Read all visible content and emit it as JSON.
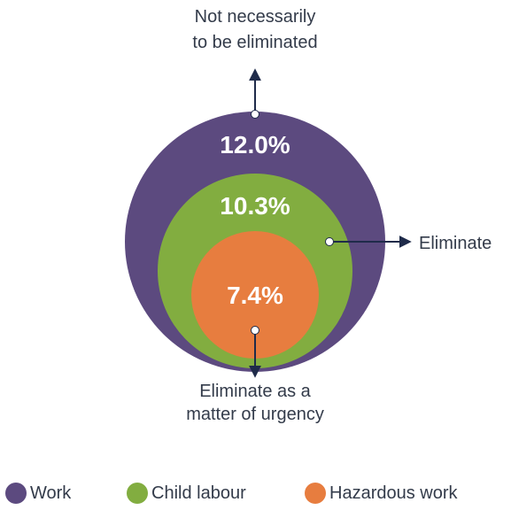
{
  "diagram": {
    "top_note": [
      "Not necessarily",
      "to be eliminated"
    ],
    "right_note": "Eliminate",
    "bottom_note": [
      "Eliminate as a",
      "matter of urgency"
    ],
    "circles": [
      {
        "key": "work",
        "value": "12.0%",
        "color": "#5c4a7f"
      },
      {
        "key": "child_labour",
        "value": "10.3%",
        "color": "#82ad40"
      },
      {
        "key": "hazardous",
        "value": "7.4%",
        "color": "#e77d3f"
      }
    ],
    "arrow_color": "#1f2b4a"
  },
  "legend": [
    {
      "label": "Work",
      "color": "#5c4a7f"
    },
    {
      "label": "Child labour",
      "color": "#82ad40"
    },
    {
      "label": "Hazardous work",
      "color": "#e77d3f"
    }
  ]
}
